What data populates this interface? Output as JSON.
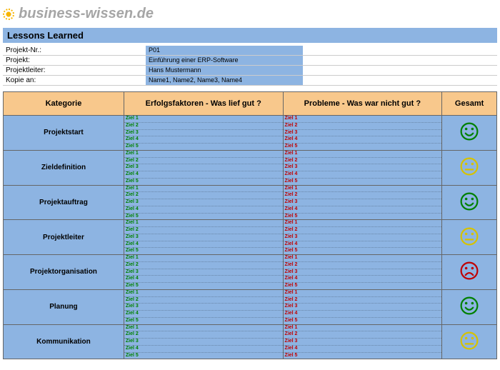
{
  "brand": "business-wissen.de",
  "title": "Lessons Learned",
  "meta": [
    {
      "label": "Projekt-Nr.:",
      "value": "P01"
    },
    {
      "label": "Projekt:",
      "value": "Einführung einer ERP-Software"
    },
    {
      "label": "Projektleiter:",
      "value": "Hans Mustermann"
    },
    {
      "label": "Kopie an:",
      "value": "Name1, Name2, Name3, Name4"
    }
  ],
  "columns": {
    "category": "Kategorie",
    "success": "Erfolgsfaktoren - Was lief gut ?",
    "problems": "Probleme - Was war nicht gut ?",
    "total": "Gesamt"
  },
  "col_widths": {
    "category": "22%",
    "success": "29%",
    "problems": "29%",
    "total": "10%"
  },
  "goals": [
    "Ziel 1",
    "Ziel 2",
    "Ziel 3",
    "Ziel 4",
    "Ziel 5"
  ],
  "rows": [
    {
      "category": "Projektstart",
      "face": "happy",
      "face_color": "#008000"
    },
    {
      "category": "Zieldefinition",
      "face": "neutral",
      "face_color": "#d6c200"
    },
    {
      "category": "Projektauftrag",
      "face": "happy",
      "face_color": "#008000"
    },
    {
      "category": "Projektleiter",
      "face": "neutral",
      "face_color": "#d6c200"
    },
    {
      "category": "Projektorganisation",
      "face": "sad",
      "face_color": "#c00000"
    },
    {
      "category": "Planung",
      "face": "happy",
      "face_color": "#008000"
    },
    {
      "category": "Kommunikation",
      "face": "neutral",
      "face_color": "#d6c200"
    }
  ],
  "colors": {
    "header_bg": "#f8c88c",
    "cell_bg": "#8db4e2",
    "success_text": "#008000",
    "problem_text": "#c00000",
    "brand_text": "#a6a6a6"
  }
}
